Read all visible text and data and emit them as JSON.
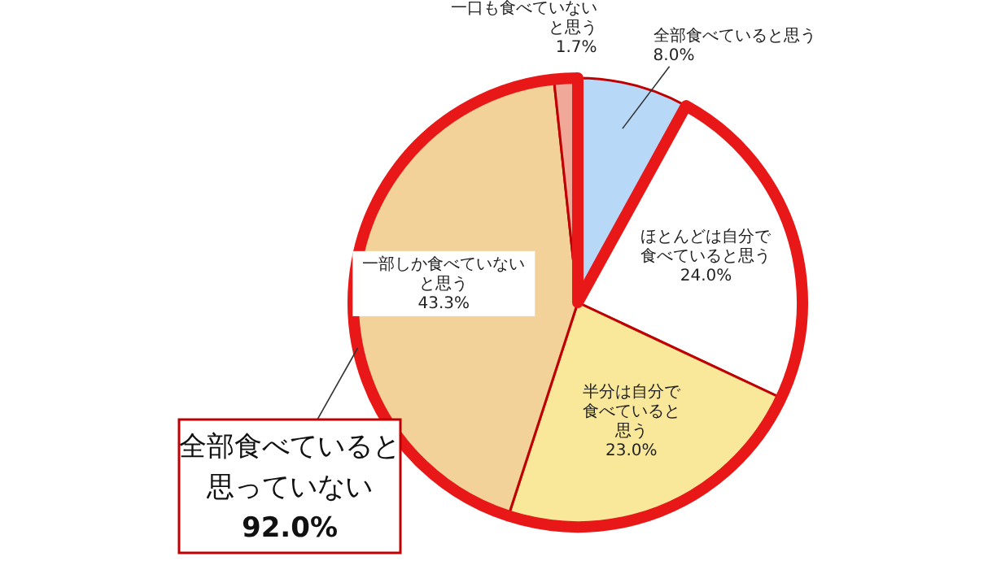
{
  "chart_data": {
    "type": "pie",
    "categories": [
      "全部食べていると思う",
      "ほとんどは自分で食べていると思う",
      "半分は自分で食べていると思う",
      "一部しか食べていないと思う",
      "一口も食べていないと思う"
    ],
    "values": [
      8.0,
      24.0,
      23.0,
      43.3,
      1.7
    ],
    "value_labels": [
      "8.0%",
      "24.0%",
      "23.0%",
      "43.3%",
      "1.7%"
    ],
    "colors": [
      "#b8d8f8",
      "#ffffff",
      "#fae89a",
      "#f3d29a",
      "#f0a898"
    ],
    "annotations": [
      "全部食べていると思っていない\n92.0%"
    ]
  }
}
